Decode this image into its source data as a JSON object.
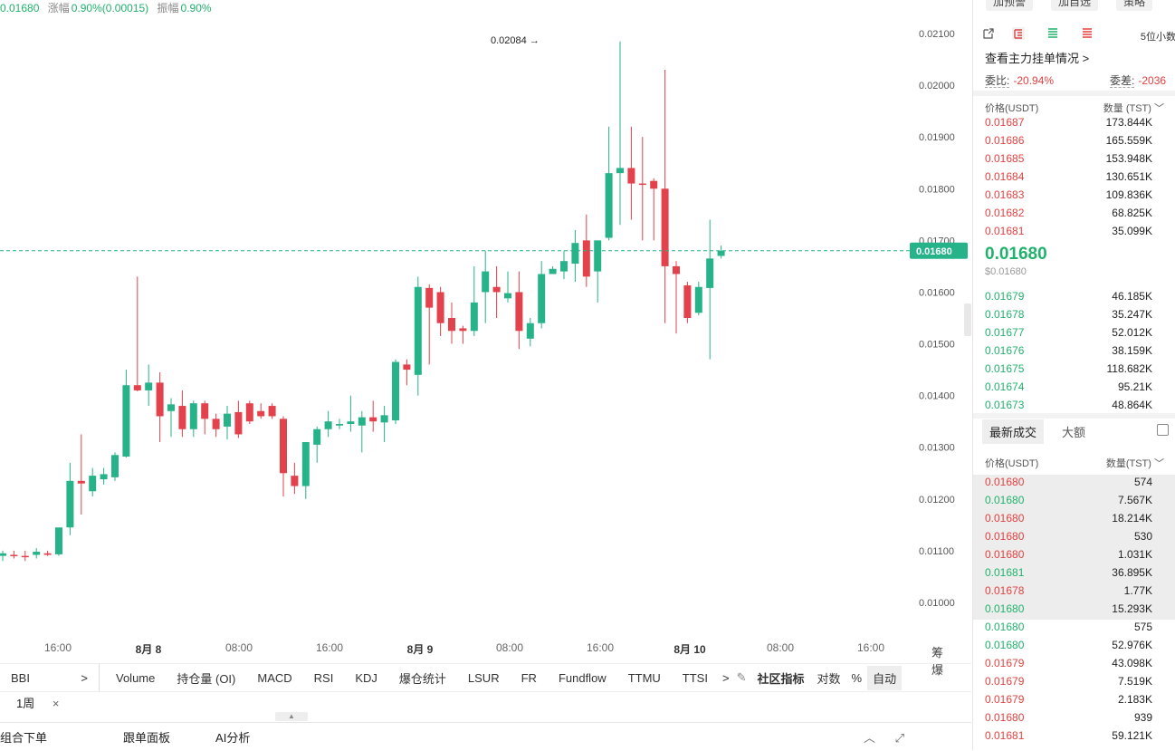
{
  "top_info": {
    "price": "0.01680",
    "change_label": "涨幅",
    "change_value": "0.90%(0.00015)",
    "amp_label": "振幅",
    "amp_value": "0.90%"
  },
  "chart_data": {
    "type": "candlestick",
    "y_ticks": [
      "0.01000",
      "0.01100",
      "0.01200",
      "0.01300",
      "0.01400",
      "0.01500",
      "0.01600",
      "0.01700",
      "0.01800",
      "0.01900",
      "0.02000",
      "0.02100"
    ],
    "ylim": [
      0.0096,
      0.0212
    ],
    "x_ticks": [
      "16:00",
      "8月 8",
      "08:00",
      "16:00",
      "8月 9",
      "08:00",
      "16:00",
      "8月 10",
      "08:00",
      "16:00"
    ],
    "current_price": "0.01680",
    "high_annotation": "0.02084 →",
    "high_value": 0.02084,
    "candles": [
      {
        "o": 0.0109,
        "h": 0.011,
        "l": 0.0108,
        "c": 0.01095
      },
      {
        "o": 0.01092,
        "h": 0.011,
        "l": 0.01085,
        "c": 0.0109
      },
      {
        "o": 0.0109,
        "h": 0.011,
        "l": 0.0108,
        "c": 0.01088
      },
      {
        "o": 0.01092,
        "h": 0.01105,
        "l": 0.01085,
        "c": 0.01098
      },
      {
        "o": 0.01095,
        "h": 0.011,
        "l": 0.0109,
        "c": 0.01092
      },
      {
        "o": 0.01093,
        "h": 0.0114,
        "l": 0.0109,
        "c": 0.01145
      },
      {
        "o": 0.01145,
        "h": 0.0127,
        "l": 0.0113,
        "c": 0.01235
      },
      {
        "o": 0.01235,
        "h": 0.01325,
        "l": 0.0117,
        "c": 0.0123
      },
      {
        "o": 0.01215,
        "h": 0.0126,
        "l": 0.01205,
        "c": 0.01245
      },
      {
        "o": 0.01238,
        "h": 0.0126,
        "l": 0.01228,
        "c": 0.01248
      },
      {
        "o": 0.01242,
        "h": 0.0129,
        "l": 0.01235,
        "c": 0.01285
      },
      {
        "o": 0.01282,
        "h": 0.0145,
        "l": 0.0128,
        "c": 0.0142
      },
      {
        "o": 0.0142,
        "h": 0.0163,
        "l": 0.01408,
        "c": 0.0141
      },
      {
        "o": 0.0141,
        "h": 0.0146,
        "l": 0.0138,
        "c": 0.01425
      },
      {
        "o": 0.01425,
        "h": 0.01445,
        "l": 0.0131,
        "c": 0.0136
      },
      {
        "o": 0.0137,
        "h": 0.01395,
        "l": 0.0132,
        "c": 0.01383
      },
      {
        "o": 0.0138,
        "h": 0.0141,
        "l": 0.0132,
        "c": 0.01335
      },
      {
        "o": 0.01335,
        "h": 0.0139,
        "l": 0.0132,
        "c": 0.01385
      },
      {
        "o": 0.01385,
        "h": 0.0139,
        "l": 0.01325,
        "c": 0.01355
      },
      {
        "o": 0.01355,
        "h": 0.01365,
        "l": 0.0132,
        "c": 0.01335
      },
      {
        "o": 0.0134,
        "h": 0.0138,
        "l": 0.01315,
        "c": 0.01365
      },
      {
        "o": 0.01368,
        "h": 0.0139,
        "l": 0.01318,
        "c": 0.01325
      },
      {
        "o": 0.01385,
        "h": 0.0139,
        "l": 0.01345,
        "c": 0.0135
      },
      {
        "o": 0.0137,
        "h": 0.01385,
        "l": 0.01355,
        "c": 0.0136
      },
      {
        "o": 0.0138,
        "h": 0.01385,
        "l": 0.01355,
        "c": 0.0136
      },
      {
        "o": 0.01355,
        "h": 0.0136,
        "l": 0.01205,
        "c": 0.0125
      },
      {
        "o": 0.01245,
        "h": 0.0127,
        "l": 0.0121,
        "c": 0.01225
      },
      {
        "o": 0.01225,
        "h": 0.0131,
        "l": 0.012,
        "c": 0.0131
      },
      {
        "o": 0.01305,
        "h": 0.0134,
        "l": 0.0127,
        "c": 0.01335
      },
      {
        "o": 0.01335,
        "h": 0.0137,
        "l": 0.0132,
        "c": 0.0135
      },
      {
        "o": 0.01342,
        "h": 0.01355,
        "l": 0.01335,
        "c": 0.01345
      },
      {
        "o": 0.01345,
        "h": 0.014,
        "l": 0.0133,
        "c": 0.0135
      },
      {
        "o": 0.01342,
        "h": 0.0137,
        "l": 0.0129,
        "c": 0.01358
      },
      {
        "o": 0.01358,
        "h": 0.0139,
        "l": 0.0133,
        "c": 0.0135
      },
      {
        "o": 0.01348,
        "h": 0.0138,
        "l": 0.0131,
        "c": 0.01362
      },
      {
        "o": 0.01352,
        "h": 0.0147,
        "l": 0.01345,
        "c": 0.01465
      },
      {
        "o": 0.0146,
        "h": 0.0147,
        "l": 0.0142,
        "c": 0.0145
      },
      {
        "o": 0.0144,
        "h": 0.0163,
        "l": 0.014,
        "c": 0.0161
      },
      {
        "o": 0.01608,
        "h": 0.01615,
        "l": 0.0146,
        "c": 0.0157
      },
      {
        "o": 0.016,
        "h": 0.0161,
        "l": 0.01515,
        "c": 0.0154
      },
      {
        "o": 0.0155,
        "h": 0.0158,
        "l": 0.015,
        "c": 0.01525
      },
      {
        "o": 0.0153,
        "h": 0.01535,
        "l": 0.015,
        "c": 0.01525
      },
      {
        "o": 0.01525,
        "h": 0.0165,
        "l": 0.01515,
        "c": 0.0158
      },
      {
        "o": 0.016,
        "h": 0.0168,
        "l": 0.0154,
        "c": 0.0164
      },
      {
        "o": 0.0161,
        "h": 0.0165,
        "l": 0.0155,
        "c": 0.016
      },
      {
        "o": 0.01588,
        "h": 0.0164,
        "l": 0.0158,
        "c": 0.01598
      },
      {
        "o": 0.016,
        "h": 0.0164,
        "l": 0.0149,
        "c": 0.01525
      },
      {
        "o": 0.0151,
        "h": 0.0155,
        "l": 0.01495,
        "c": 0.0154
      },
      {
        "o": 0.0154,
        "h": 0.0166,
        "l": 0.0153,
        "c": 0.01635
      },
      {
        "o": 0.01635,
        "h": 0.0165,
        "l": 0.0164,
        "c": 0.01645
      },
      {
        "o": 0.0164,
        "h": 0.0168,
        "l": 0.01625,
        "c": 0.0166
      },
      {
        "o": 0.01655,
        "h": 0.0172,
        "l": 0.0162,
        "c": 0.01695
      },
      {
        "o": 0.017,
        "h": 0.0175,
        "l": 0.0161,
        "c": 0.0163
      },
      {
        "o": 0.0164,
        "h": 0.017,
        "l": 0.0158,
        "c": 0.017
      },
      {
        "o": 0.01705,
        "h": 0.0192,
        "l": 0.017,
        "c": 0.0183
      },
      {
        "o": 0.0183,
        "h": 0.02085,
        "l": 0.0173,
        "c": 0.0184
      },
      {
        "o": 0.0184,
        "h": 0.0192,
        "l": 0.0174,
        "c": 0.0181
      },
      {
        "o": 0.0181,
        "h": 0.019,
        "l": 0.017,
        "c": 0.01808
      },
      {
        "o": 0.01815,
        "h": 0.0182,
        "l": 0.017,
        "c": 0.018
      },
      {
        "o": 0.018,
        "h": 0.0203,
        "l": 0.0154,
        "c": 0.0165
      },
      {
        "o": 0.0165,
        "h": 0.0166,
        "l": 0.0152,
        "c": 0.01635
      },
      {
        "o": 0.01613,
        "h": 0.0162,
        "l": 0.0154,
        "c": 0.0155
      },
      {
        "o": 0.0156,
        "h": 0.0162,
        "l": 0.01555,
        "c": 0.0161
      },
      {
        "o": 0.01608,
        "h": 0.0174,
        "l": 0.0147,
        "c": 0.01665
      },
      {
        "o": 0.0167,
        "h": 0.0169,
        "l": 0.01665,
        "c": 0.0168
      }
    ]
  },
  "indicators": {
    "bbi": "BBI",
    "arrow": ">",
    "items": [
      "Volume",
      "持仓量 (OI)",
      "MACD",
      "RSI",
      "KDJ",
      "爆仓统计",
      "LSUR",
      "FR",
      "Fundflow",
      "TTMU",
      "TTSI"
    ],
    "more_arrow": ">",
    "community": "社区指标",
    "log": "对数",
    "pct": "%",
    "auto": "自动"
  },
  "period": {
    "label": "1周",
    "close": "×"
  },
  "side_labels": "筹 爆",
  "bottom_tabs": [
    "组合下单",
    "跟单面板",
    "AI分析"
  ],
  "orderbook": {
    "buttons": [
      "加预警",
      "加自选",
      "策略"
    ],
    "digits": "5位小数",
    "main_force": "查看主力挂单情况 >",
    "ratio_label": "委比:",
    "ratio_value": "-20.94%",
    "diff_label": "委差:",
    "diff_value": "-2036",
    "price_header": "价格(USDT)",
    "qty_header": "数量 (TST)",
    "asks": [
      {
        "p": "0.01687",
        "q": "173.844K"
      },
      {
        "p": "0.01686",
        "q": "165.559K"
      },
      {
        "p": "0.01685",
        "q": "153.948K"
      },
      {
        "p": "0.01684",
        "q": "130.651K"
      },
      {
        "p": "0.01683",
        "q": "109.836K"
      },
      {
        "p": "0.01682",
        "q": "68.825K"
      },
      {
        "p": "0.01681",
        "q": "35.099K"
      }
    ],
    "last_price": "0.01680",
    "last_usd": "$0.01680",
    "bids": [
      {
        "p": "0.01679",
        "q": "46.185K"
      },
      {
        "p": "0.01678",
        "q": "35.247K"
      },
      {
        "p": "0.01677",
        "q": "52.012K"
      },
      {
        "p": "0.01676",
        "q": "38.159K"
      },
      {
        "p": "0.01675",
        "q": "118.682K"
      },
      {
        "p": "0.01674",
        "q": "95.21K"
      },
      {
        "p": "0.01673",
        "q": "48.864K"
      }
    ]
  },
  "trades": {
    "tab_latest": "最新成交",
    "tab_large": "大额",
    "price_header": "价格(USDT)",
    "qty_header": "数量(TST)",
    "rows": [
      {
        "p": "0.01680",
        "q": "574",
        "side": "sell"
      },
      {
        "p": "0.01680",
        "q": "7.567K",
        "side": "buy"
      },
      {
        "p": "0.01680",
        "q": "18.214K",
        "side": "sell"
      },
      {
        "p": "0.01680",
        "q": "530",
        "side": "sell"
      },
      {
        "p": "0.01680",
        "q": "1.031K",
        "side": "sell"
      },
      {
        "p": "0.01681",
        "q": "36.895K",
        "side": "buy"
      },
      {
        "p": "0.01678",
        "q": "1.77K",
        "side": "sell"
      },
      {
        "p": "0.01680",
        "q": "15.293K",
        "side": "buy"
      },
      {
        "p": "0.01680",
        "q": "575",
        "side": "buy"
      },
      {
        "p": "0.01680",
        "q": "52.976K",
        "side": "buy"
      },
      {
        "p": "0.01679",
        "q": "43.098K",
        "side": "sell"
      },
      {
        "p": "0.01679",
        "q": "7.519K",
        "side": "sell"
      },
      {
        "p": "0.01679",
        "q": "2.183K",
        "side": "sell"
      },
      {
        "p": "0.01680",
        "q": "939",
        "side": "sell"
      },
      {
        "p": "0.01681",
        "q": "59.121K",
        "side": "sell"
      }
    ]
  },
  "colors": {
    "up": "#26b38a",
    "down": "#e3414b",
    "accent": "#20b26c"
  }
}
